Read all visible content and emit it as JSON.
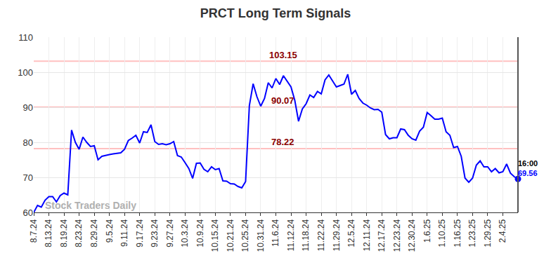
{
  "chart_data": {
    "type": "line",
    "title": "PRCT Long Term Signals",
    "color": "#0000ff",
    "categories": [
      "8.7.24",
      null,
      null,
      null,
      "8.13.24",
      null,
      null,
      null,
      "8.19.24",
      null,
      null,
      null,
      "8.23.24",
      null,
      null,
      null,
      "8.29.24",
      null,
      null,
      null,
      "9.5.24",
      null,
      null,
      null,
      "9.11.24",
      null,
      null,
      null,
      "9.17.24",
      null,
      null,
      null,
      "9.23.24",
      null,
      null,
      null,
      "9.27.24",
      null,
      null,
      null,
      "10.3.24",
      null,
      null,
      null,
      "10.9.24",
      null,
      null,
      null,
      "10.15.24",
      null,
      null,
      null,
      "10.21.24",
      null,
      null,
      null,
      "10.25.24",
      null,
      null,
      null,
      "10.31.24",
      null,
      null,
      null,
      "11.6.24",
      null,
      null,
      null,
      "11.12.24",
      null,
      null,
      null,
      "11.18.24",
      null,
      null,
      null,
      "11.22.24",
      null,
      null,
      null,
      "11.29.24",
      null,
      null,
      null,
      "12.5.24",
      null,
      null,
      null,
      "12.11.24",
      null,
      null,
      null,
      "12.17.24",
      null,
      null,
      null,
      "12.23.24",
      null,
      null,
      null,
      "12.30.24",
      null,
      null,
      null,
      "1.6.25",
      null,
      null,
      null,
      "1.10.25",
      null,
      null,
      null,
      "1.16.25",
      null,
      null,
      null,
      "1.23.25",
      null,
      null,
      null,
      "1.29.25",
      null,
      null,
      null,
      "2.4.25",
      null,
      null,
      null,
      null
    ],
    "values": [
      60,
      62,
      61.5,
      63.5,
      64.5,
      64.5,
      63,
      64.8,
      65.5,
      65,
      83.5,
      80,
      78,
      81.5,
      80,
      78.8,
      79,
      75,
      76,
      76.3,
      76.5,
      76.7,
      76.8,
      77,
      78,
      80.5,
      81.2,
      82,
      79.8,
      83,
      82.8,
      85,
      80.2,
      79.4,
      79.6,
      79.3,
      79.6,
      80.2,
      76.2,
      75.8,
      74.2,
      72.5,
      69.7,
      74,
      74.1,
      72.3,
      71.6,
      73,
      72.2,
      72.5,
      69,
      68.9,
      68.2,
      68.1,
      67.4,
      67,
      68.8,
      90.5,
      96.7,
      93,
      90.3,
      92.5,
      97,
      95.5,
      98.2,
      96.5,
      99,
      97.5,
      95.8,
      92,
      86,
      89.5,
      91,
      93.5,
      92.8,
      94.5,
      93.8,
      97.8,
      99.2,
      97.5,
      95.8,
      96.2,
      96.6,
      99.4,
      93.7,
      94.8,
      92.5,
      91.2,
      90.6,
      89.8,
      89.3,
      89.4,
      88.6,
      82.2,
      81,
      81.3,
      81.3,
      83.8,
      83.6,
      82,
      81,
      80.6,
      83.2,
      84.3,
      88.5,
      87.6,
      86.6,
      86.6,
      86.9,
      83,
      82,
      78.5,
      78.8,
      76,
      69.8,
      68.6,
      69.8,
      73.5,
      74.7,
      73,
      73,
      71.6,
      72.5,
      71.3,
      71.6,
      73.8,
      71.2,
      70.2,
      69.56
    ],
    "ylim": [
      60,
      110
    ],
    "yticks": [
      60,
      70,
      80,
      90,
      100,
      110
    ],
    "grid": true,
    "signal_levels": [
      103.15,
      90.07,
      78.22
    ],
    "last_time": "16:00",
    "watermark": "Stock Traders Daily"
  }
}
